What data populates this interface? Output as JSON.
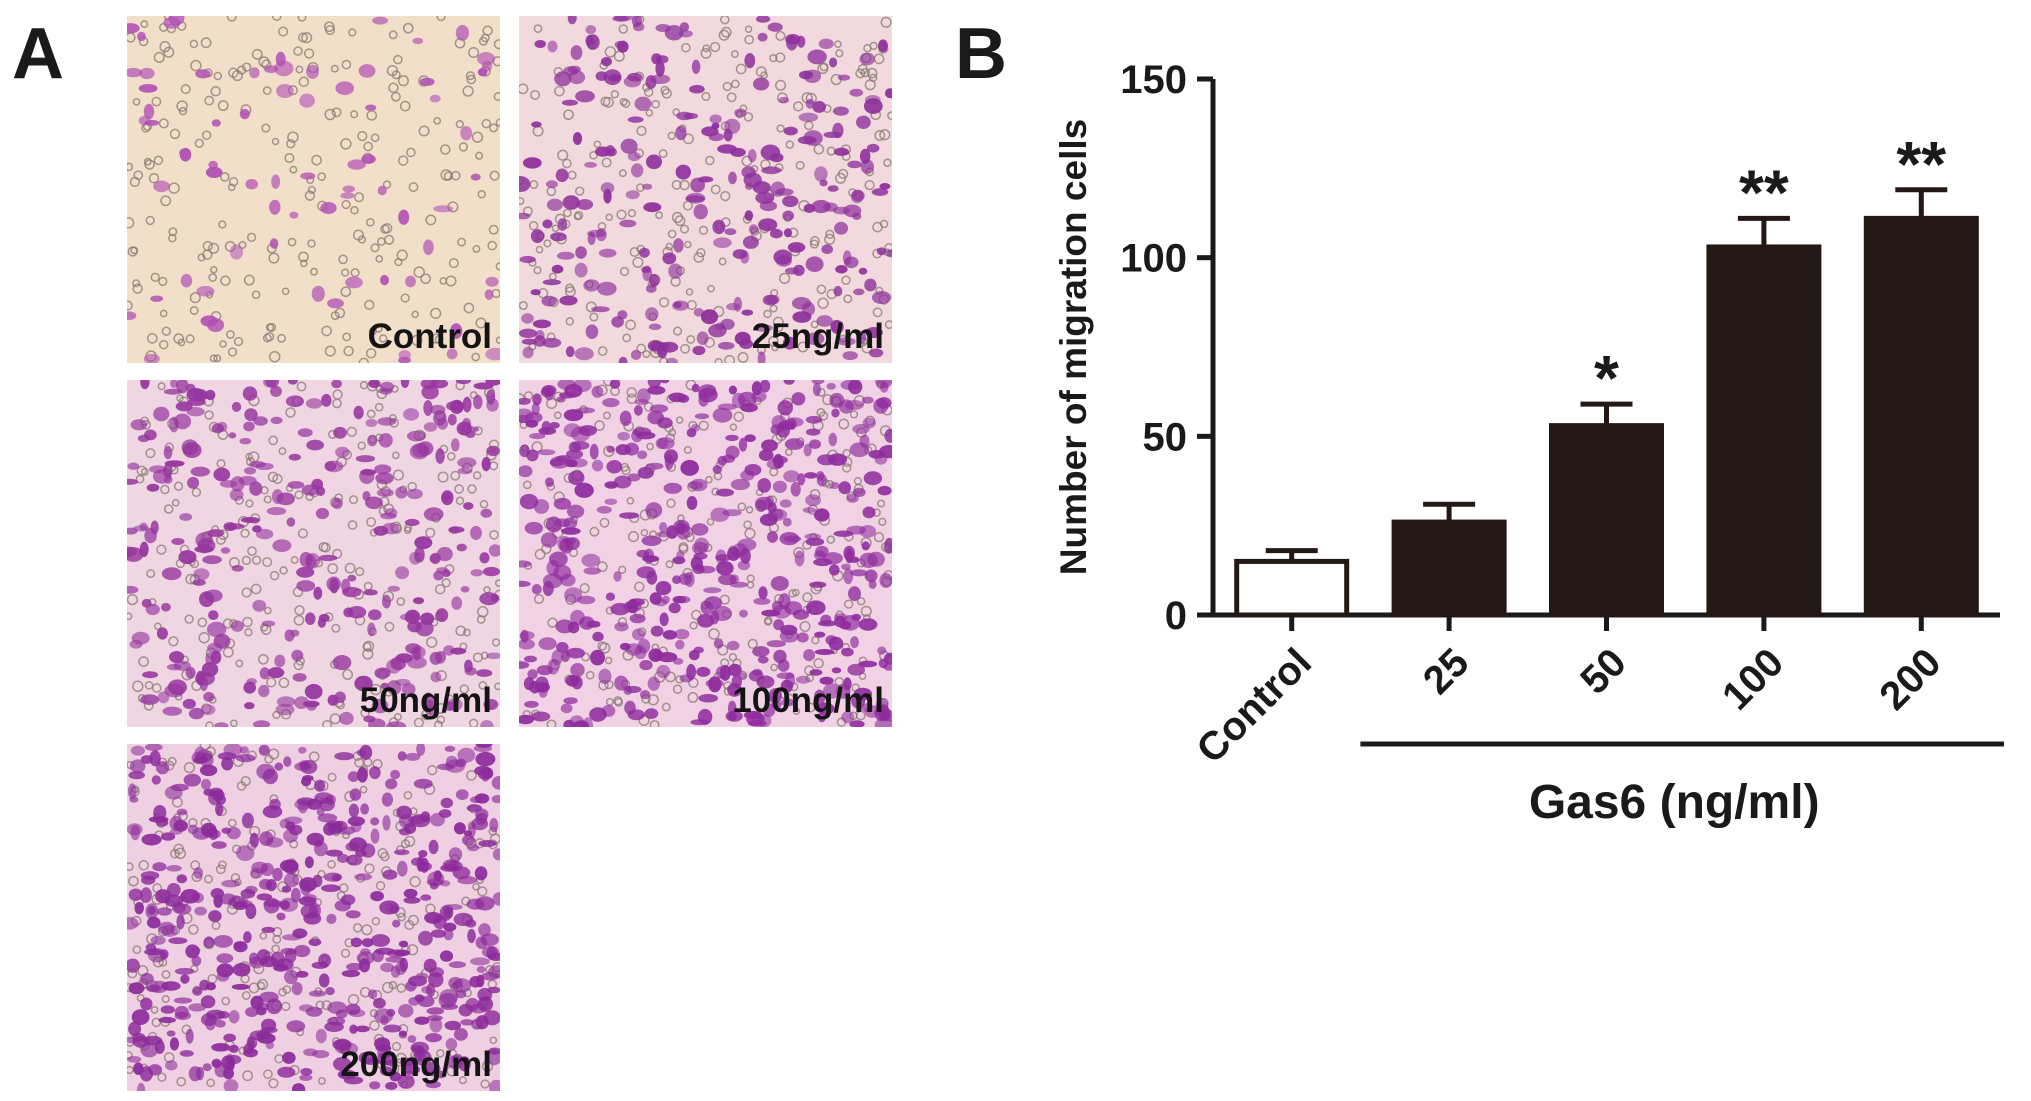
{
  "panels": {
    "a_label": "A",
    "b_label": "B"
  },
  "micrographs": [
    {
      "label": "Control",
      "density": 0.1,
      "background": "#f2dfc9",
      "stain": "#b14fb5"
    },
    {
      "label": "25ng/ml",
      "density": 0.45,
      "background": "#f1d9dd",
      "stain": "#8e2f9c"
    },
    {
      "label": "50ng/ml",
      "density": 0.55,
      "background": "#f0d5e3",
      "stain": "#96359f"
    },
    {
      "label": "100ng/ml",
      "density": 0.85,
      "background": "#f0d2e4",
      "stain": "#8f2c9e"
    },
    {
      "label": "200ng/ml",
      "density": 0.95,
      "background": "#efd0e2",
      "stain": "#8c2a9b"
    }
  ],
  "chart_data": {
    "type": "bar",
    "categories": [
      "Control",
      "25",
      "50",
      "100",
      "200"
    ],
    "values": [
      15,
      26,
      53,
      103,
      111
    ],
    "errors": [
      3,
      5,
      6,
      8,
      8
    ],
    "significance": [
      "",
      "",
      "*",
      "**",
      "**"
    ],
    "fills": [
      "#ffffff",
      "#231815",
      "#231815",
      "#231815",
      "#231815"
    ],
    "ylabel": "Number of migration cells",
    "xlabel": "Gas6 (ng/ml)",
    "ylim": [
      0,
      150
    ],
    "yticks": [
      "0",
      "50",
      "100",
      "150"
    ],
    "grid": false
  }
}
